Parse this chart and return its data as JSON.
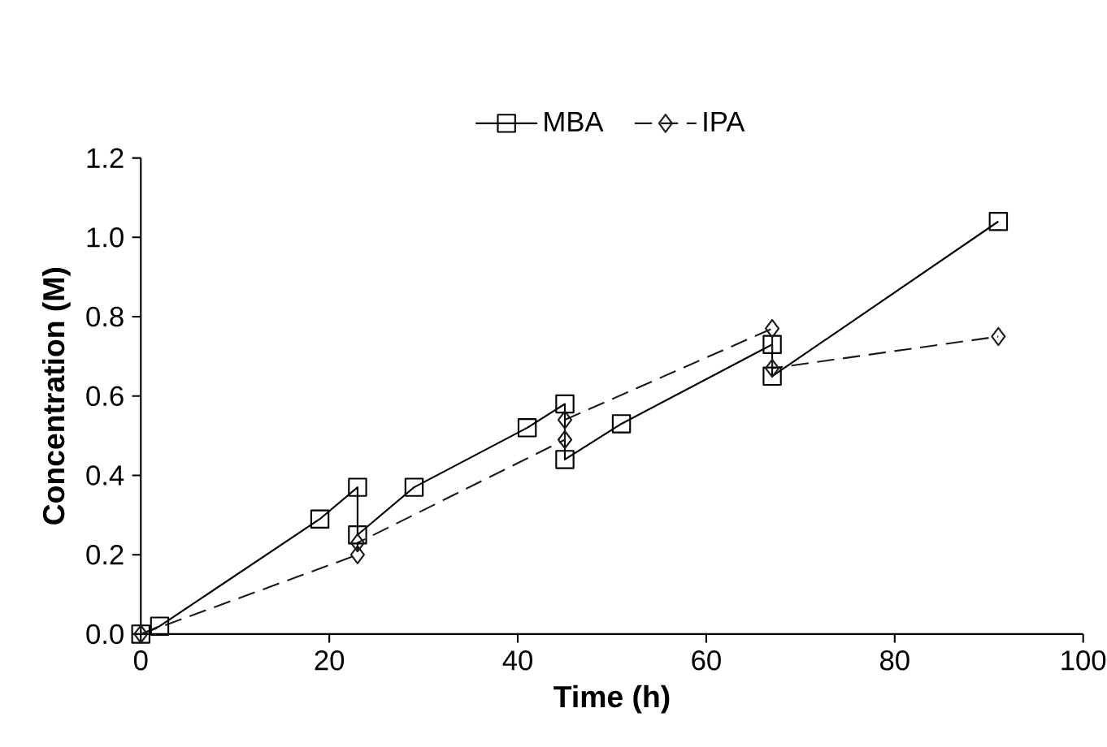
{
  "chart_data": {
    "type": "line",
    "xlabel": "Time (h)",
    "ylabel": "Concentration (M)",
    "xlim": [
      0,
      100
    ],
    "xticks": [
      0,
      20,
      40,
      60,
      80,
      100
    ],
    "ylim": [
      0,
      1.2
    ],
    "yticks": [
      {
        "value": 0,
        "label": "0.0"
      },
      {
        "value": 0.2,
        "label": "0.2"
      },
      {
        "value": 0.4,
        "label": "0.4"
      },
      {
        "value": 0.6,
        "label": "0.6"
      },
      {
        "value": 0.8,
        "label": "0.8"
      },
      {
        "value": 1.0,
        "label": "1.0"
      },
      {
        "value": 1.2,
        "label": "1.2"
      }
    ],
    "legend": "top",
    "grid": false,
    "series": [
      {
        "name": "MBA",
        "color": "#000000",
        "marker": "square",
        "line_style": "solid",
        "x": [
          0,
          2,
          19,
          23,
          23,
          29,
          41,
          45,
          45,
          51,
          67,
          67,
          91
        ],
        "values": [
          0,
          0.02,
          0.29,
          0.37,
          0.25,
          0.37,
          0.52,
          0.58,
          0.44,
          0.53,
          0.73,
          0.65,
          1.04
        ]
      },
      {
        "name": "IPA",
        "color": "#1c1c1c",
        "marker": "diamond",
        "line_style": "dashed",
        "x": [
          0,
          23,
          23,
          45,
          45,
          67,
          67,
          91
        ],
        "values": [
          0,
          0.2,
          0.23,
          0.49,
          0.54,
          0.77,
          0.67,
          0.75
        ]
      }
    ]
  }
}
